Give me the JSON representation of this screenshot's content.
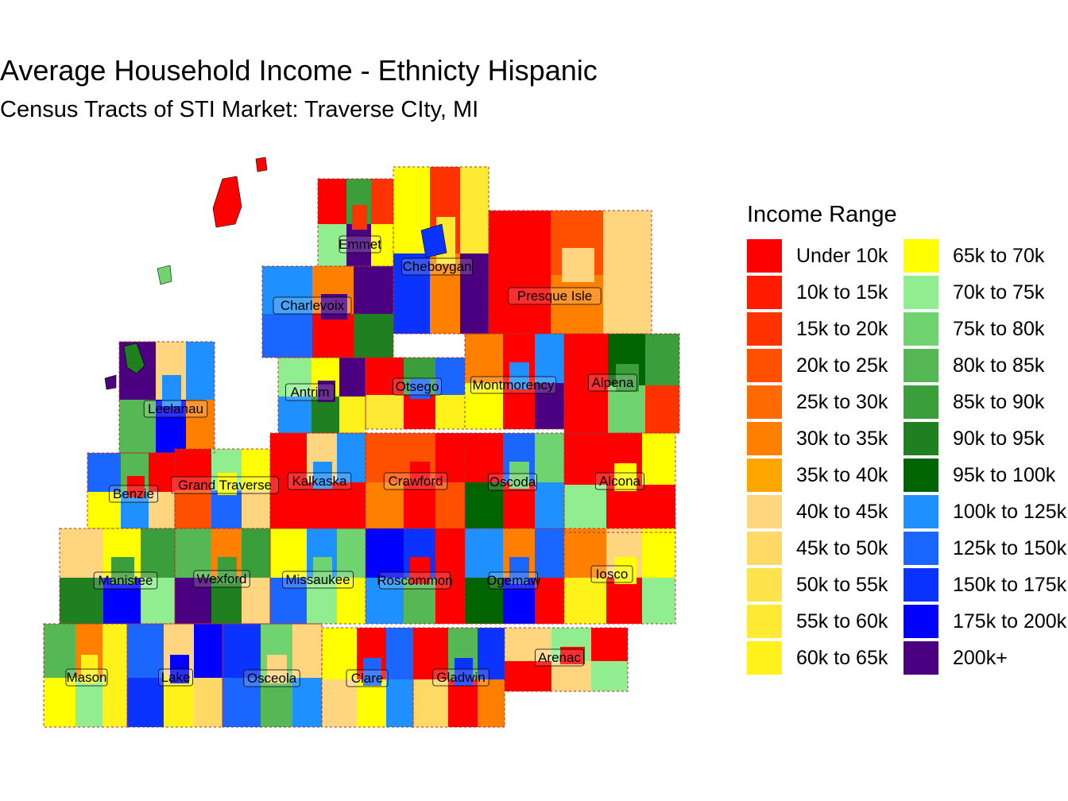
{
  "title": "Average Household Income - Ethnicty Hispanic",
  "subtitle": "Census Tracts of STI Market: Traverse CIty, MI",
  "legend": {
    "title": "Income Range",
    "items": [
      {
        "label": "Under 10k",
        "color": "#ff0000"
      },
      {
        "label": "10k to 15k",
        "color": "#ff1a00"
      },
      {
        "label": "15k to 20k",
        "color": "#ff3300"
      },
      {
        "label": "20k to 25k",
        "color": "#ff5000"
      },
      {
        "label": "25k to 30k",
        "color": "#ff6a00"
      },
      {
        "label": "30k to 35k",
        "color": "#ff8000"
      },
      {
        "label": "35k to 40k",
        "color": "#ffa500"
      },
      {
        "label": "40k to 45k",
        "color": "#ffd580"
      },
      {
        "label": "45k to 50k",
        "color": "#ffd966"
      },
      {
        "label": "50k to 55k",
        "color": "#ffe34d"
      },
      {
        "label": "55k to 60k",
        "color": "#ffea33"
      },
      {
        "label": "60k to 65k",
        "color": "#fff21a"
      },
      {
        "label": "65k to 70k",
        "color": "#ffff00"
      },
      {
        "label": "70k to 75k",
        "color": "#90ee90"
      },
      {
        "label": "75k to 80k",
        "color": "#6fd36f"
      },
      {
        "label": "80k to 85k",
        "color": "#55b855"
      },
      {
        "label": "85k to 90k",
        "color": "#3a9e3a"
      },
      {
        "label": "90k to 95k",
        "color": "#1f801f"
      },
      {
        "label": "95k to 100k",
        "color": "#006400"
      },
      {
        "label": "100k to 125k",
        "color": "#1e90ff"
      },
      {
        "label": "125k to 150k",
        "color": "#1a66ff"
      },
      {
        "label": "150k to 175k",
        "color": "#0a33ff"
      },
      {
        "label": "175k to 200k",
        "color": "#0000ff"
      },
      {
        "label": "200k+",
        "color": "#4b0082"
      }
    ]
  },
  "counties": [
    "Emmet",
    "Cheboygan",
    "Presque Isle",
    "Charlevoix",
    "Antrim",
    "Otsego",
    "Montmorency",
    "Alpena",
    "Leelanau",
    "Benzie",
    "Grand Traverse",
    "Kalkaska",
    "Crawford",
    "Oscoda",
    "Alcona",
    "Manistee",
    "Wexford",
    "Missaukee",
    "Roscommon",
    "Ogemaw",
    "Iosco",
    "Mason",
    "Lake",
    "Osceola",
    "Clare",
    "Gladwin",
    "Arenac"
  ]
}
